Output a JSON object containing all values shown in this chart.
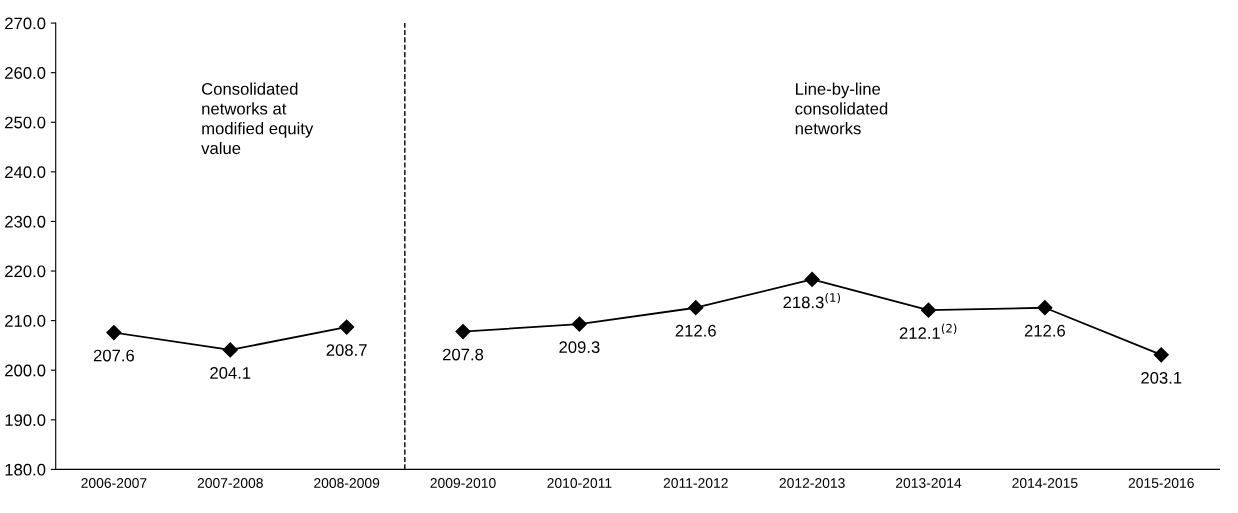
{
  "chart_data": {
    "type": "line",
    "categories": [
      "2006-2007",
      "2007-2008",
      "2008-2009",
      "2009-2010",
      "2010-2011",
      "2011-2012",
      "2012-2013",
      "2013-2014",
      "2014-2015",
      "2015-2016"
    ],
    "series": [
      {
        "color": "#000000",
        "values": [
          207.6,
          204.1,
          208.7,
          null,
          null,
          null,
          null,
          null,
          null,
          null
        ],
        "value_labels": [
          "207.6",
          "204.1",
          "208.7",
          null,
          null,
          null,
          null,
          null,
          null,
          null
        ]
      },
      {
        "color": "#000000",
        "values": [
          null,
          null,
          null,
          207.8,
          209.3,
          212.6,
          218.3,
          212.1,
          212.6,
          203.1
        ],
        "value_labels": [
          null,
          null,
          null,
          "207.8",
          "209.3",
          "212.6",
          "218.3$^{(1)}$",
          "212.1$^{(2)}$",
          "212.6",
          "203.1"
        ]
      }
    ],
    "ylim": [
      180,
      270
    ],
    "yticks": [
      {
        "value": 180,
        "label": "180.0"
      },
      {
        "value": 190,
        "label": "190.0"
      },
      {
        "value": 200,
        "label": "200.0"
      },
      {
        "value": 210,
        "label": "210.0"
      },
      {
        "value": 220,
        "label": "220.0"
      },
      {
        "value": 230,
        "label": "230.0"
      },
      {
        "value": 240,
        "label": "240.0"
      },
      {
        "value": 250,
        "label": "250.0"
      },
      {
        "value": 260,
        "label": "260.0"
      },
      {
        "value": 270,
        "label": "270.0"
      }
    ],
    "annotations": [
      "Consolidated\nnetworks at\nmodified equity\nvalue",
      "Line-by-line\nconsolidated\nnetworks"
    ],
    "marker": "diamond",
    "line_style": "solid",
    "grid": false,
    "legend": false
  }
}
